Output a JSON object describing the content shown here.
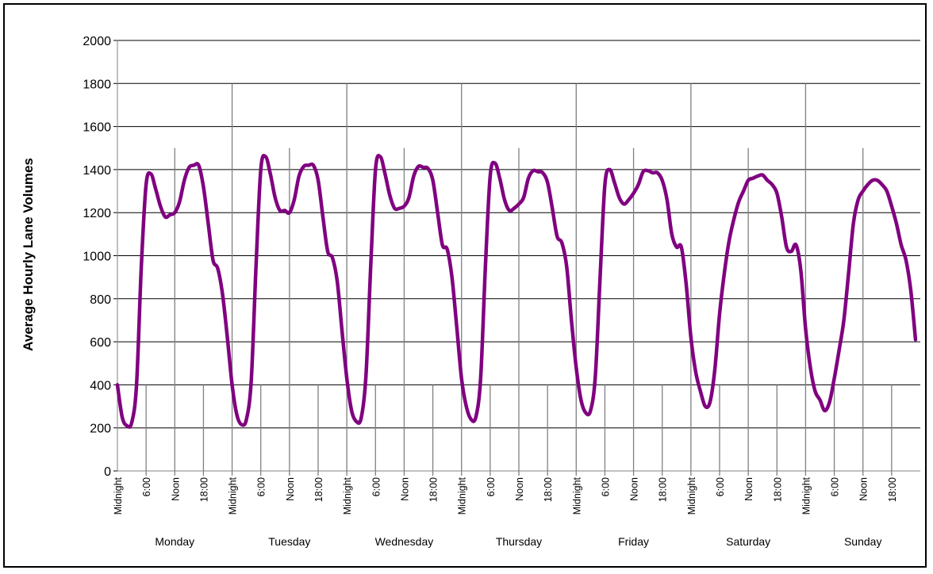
{
  "chart_data": {
    "type": "line",
    "ylabel": "Average Hourly Lane Volumes",
    "xlabel": "",
    "title": "",
    "ylim": [
      0,
      2000
    ],
    "yticks": [
      0,
      200,
      400,
      600,
      800,
      1000,
      1200,
      1400,
      1600,
      1800,
      2000
    ],
    "hour_labels": [
      "Midnight",
      "6:00",
      "Noon",
      "18:00"
    ],
    "days": [
      "Monday",
      "Tuesday",
      "Wednesday",
      "Thursday",
      "Friday",
      "Saturday",
      "Sunday"
    ],
    "grid": "horizontal",
    "legend": "none",
    "color": "#800080",
    "series": [
      {
        "values": [
          400,
          250,
          210,
          225,
          400,
          950,
          1330,
          1380,
          1310,
          1230,
          1180,
          1190,
          1200,
          1250,
          1350,
          1410,
          1420,
          1420,
          1320,
          1150,
          980,
          940,
          820,
          620,
          400,
          260,
          215,
          240,
          420,
          950,
          1400,
          1460,
          1380,
          1270,
          1210,
          1210,
          1200,
          1260,
          1370,
          1415,
          1420,
          1420,
          1350,
          1180,
          1020,
          990,
          880,
          650,
          430,
          280,
          230,
          245,
          440,
          950,
          1400,
          1460,
          1380,
          1280,
          1220,
          1220,
          1230,
          1270,
          1370,
          1415,
          1410,
          1405,
          1350,
          1200,
          1050,
          1030,
          900,
          670,
          430,
          300,
          240,
          250,
          430,
          950,
          1370,
          1430,
          1360,
          1260,
          1210,
          1220,
          1240,
          1270,
          1360,
          1395,
          1390,
          1385,
          1340,
          1220,
          1090,
          1060,
          950,
          700,
          480,
          330,
          270,
          280,
          440,
          900,
          1330,
          1400,
          1340,
          1270,
          1240,
          1260,
          1290,
          1330,
          1390,
          1395,
          1385,
          1385,
          1350,
          1260,
          1100,
          1040,
          1040,
          870,
          620,
          460,
          370,
          300,
          320,
          470,
          730,
          920,
          1070,
          1170,
          1250,
          1300,
          1350,
          1360,
          1370,
          1375,
          1350,
          1330,
          1290,
          1180,
          1040,
          1020,
          1050,
          930,
          660,
          480,
          370,
          330,
          280,
          320,
          430,
          560,
          700,
          920,
          1150,
          1260,
          1300,
          1330,
          1350,
          1350,
          1330,
          1300,
          1230,
          1150,
          1050,
          980,
          840,
          610
        ]
      }
    ]
  }
}
